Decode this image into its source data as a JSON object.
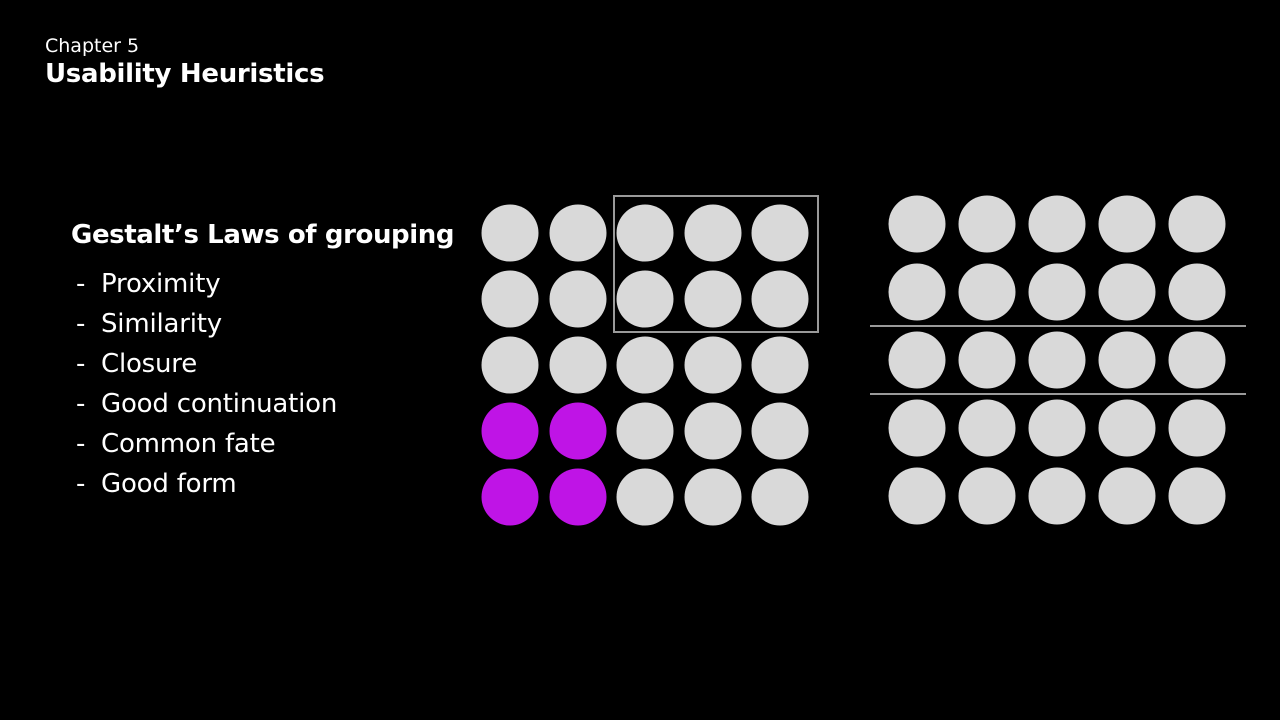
{
  "header": {
    "chapter": "Chapter 5",
    "title": "Usability Heuristics"
  },
  "laws": {
    "heading": "Gestalt’s Laws of grouping",
    "bullet": "-",
    "items": [
      "Proximity",
      "Similarity",
      "Closure",
      "Good continuation",
      "Common fate",
      "Good form"
    ]
  },
  "colors": {
    "background": "#000000",
    "circle": "#d9d9d9",
    "highlight": "#bf14e6",
    "line": "#9a9a9a"
  },
  "left_grid": {
    "rows": 5,
    "cols": 5,
    "highlighted": [
      [
        3,
        0
      ],
      [
        3,
        1
      ],
      [
        4,
        0
      ],
      [
        4,
        1
      ]
    ],
    "boxed_rows": [
      0,
      1
    ],
    "boxed_cols": [
      2,
      3,
      4
    ]
  },
  "right_grid": {
    "rows": 5,
    "cols": 5,
    "separator_after_rows": [
      1,
      2
    ]
  }
}
